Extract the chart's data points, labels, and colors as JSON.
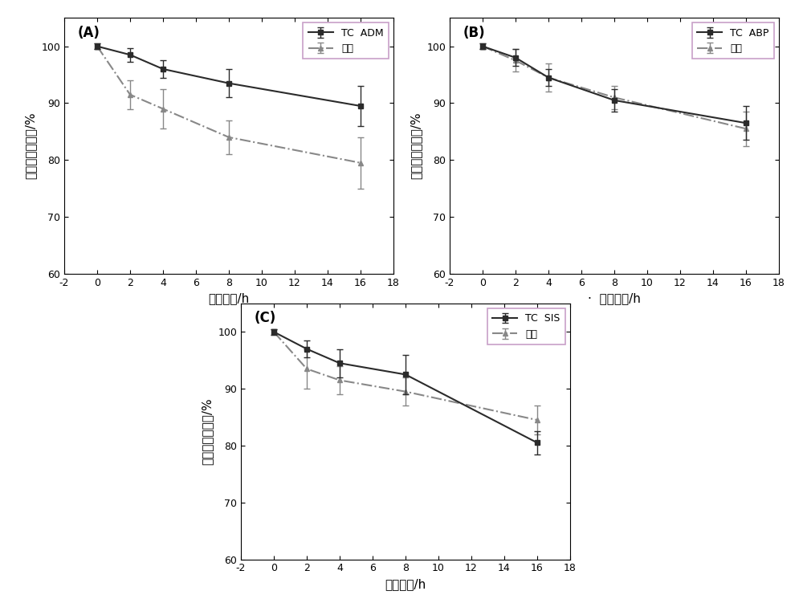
{
  "panels": [
    {
      "label": "(A)",
      "tc_label": "TC  ADM",
      "x": [
        0,
        2,
        4,
        8,
        16
      ],
      "tc_y": [
        100,
        98.5,
        96.0,
        93.5,
        89.5
      ],
      "tc_yerr": [
        0.5,
        1.2,
        1.5,
        2.5,
        3.5
      ],
      "sp_y": [
        100,
        91.5,
        89.0,
        84.0,
        79.5
      ],
      "sp_yerr": [
        0.5,
        2.5,
        3.5,
        3.0,
        4.5
      ]
    },
    {
      "label": "(B)",
      "tc_label": "TC  ABP",
      "x": [
        0,
        2,
        4,
        8,
        16
      ],
      "tc_y": [
        100,
        98.0,
        94.5,
        90.5,
        86.5
      ],
      "tc_yerr": [
        0.5,
        1.5,
        1.5,
        2.0,
        3.0
      ],
      "sp_y": [
        100,
        97.5,
        94.5,
        91.0,
        85.5
      ],
      "sp_yerr": [
        0.5,
        2.0,
        2.5,
        2.0,
        3.0
      ]
    },
    {
      "label": "(C)",
      "tc_label": "TC  SIS",
      "x": [
        0,
        2,
        4,
        8,
        16
      ],
      "tc_y": [
        100,
        97.0,
        94.5,
        92.5,
        80.5
      ],
      "tc_yerr": [
        0.5,
        1.5,
        2.5,
        3.5,
        2.0
      ],
      "sp_y": [
        100,
        93.5,
        91.5,
        89.5,
        84.5
      ],
      "sp_yerr": [
        0.5,
        3.5,
        2.5,
        2.5,
        2.5
      ]
    }
  ],
  "sp_label": "商品",
  "xlabel": "降解时间/h",
  "ylabel": "组织质量剩余率/%",
  "xlim": [
    -2,
    18
  ],
  "xticks": [
    -2,
    0,
    2,
    4,
    6,
    8,
    10,
    12,
    14,
    16,
    18
  ],
  "ylim": [
    60,
    105
  ],
  "yticks": [
    60,
    70,
    80,
    90,
    100
  ],
  "tc_color": "#2b2b2b",
  "sp_color": "#888888",
  "tc_linestyle": "-",
  "sp_linestyle": "-.",
  "tc_marker": "s",
  "sp_marker": "^",
  "legend_border_color": "#c8a0c8",
  "background_color": "#ffffff"
}
